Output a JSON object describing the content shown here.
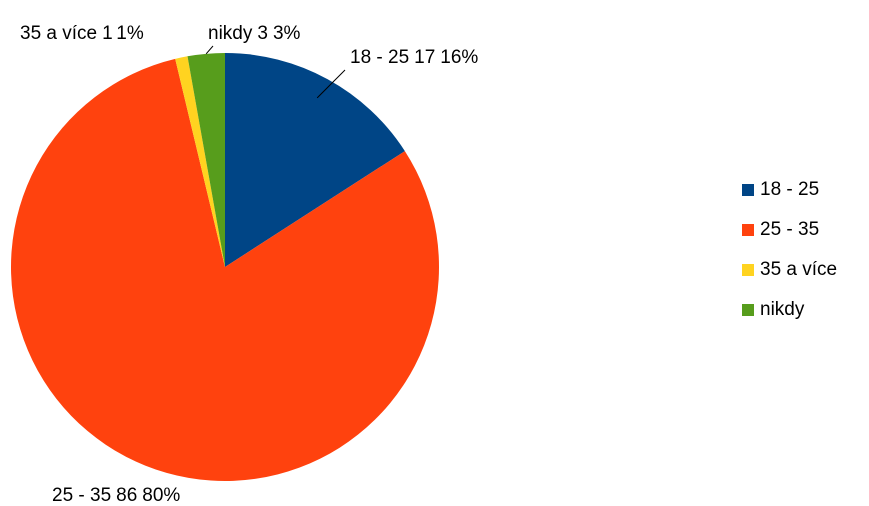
{
  "chart_data": {
    "type": "pie",
    "categories": [
      "18 - 25",
      "25 - 35",
      "35 a více",
      "nikdy"
    ],
    "values": [
      17,
      86,
      1,
      3
    ],
    "percent_labels": [
      "16%",
      "80%",
      "1%",
      "3%"
    ],
    "colors": [
      "#004586",
      "#ff420e",
      "#ffd320",
      "#579d1c"
    ],
    "legend": "right"
  }
}
